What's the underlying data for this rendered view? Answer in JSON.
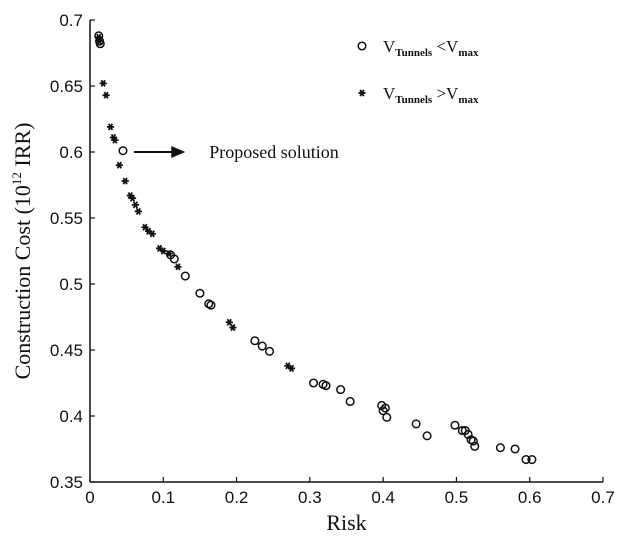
{
  "chart_data": {
    "type": "scatter",
    "xlabel": "Risk",
    "ylabel": "Construction Cost (10",
    "ylabel_sup": "12",
    "ylabel_tail": " IRR)",
    "xlim": [
      0,
      0.7
    ],
    "ylim": [
      0.35,
      0.7
    ],
    "xticks": [
      0,
      0.1,
      0.2,
      0.3,
      0.4,
      0.5,
      0.6,
      0.7
    ],
    "xtick_labels": [
      "0",
      "0.1",
      "0.2",
      "0.3",
      "0.4",
      "0.5",
      "0.6",
      "0.7"
    ],
    "yticks": [
      0.35,
      0.4,
      0.45,
      0.5,
      0.55,
      0.6,
      0.65,
      0.7
    ],
    "ytick_labels": [
      "0.35",
      "0.4",
      "0.45",
      "0.5",
      "0.55",
      "0.6",
      "0.65",
      "0.7"
    ],
    "grid": false,
    "legend_position": "top-right",
    "annotation": {
      "text": "Proposed solution",
      "arrow_from": [
        0.06,
        0.6
      ],
      "arrow_to": [
        0.13,
        0.6
      ]
    },
    "series": [
      {
        "name": "V_Tunnels < V_max",
        "legend": {
          "v": "V",
          "sub1": "Tunnels",
          "op": " <V",
          "sub2": "max"
        },
        "marker": "circle",
        "points": [
          [
            0.012,
            0.688
          ],
          [
            0.013,
            0.684
          ],
          [
            0.014,
            0.682
          ],
          [
            0.045,
            0.601
          ],
          [
            0.11,
            0.522
          ],
          [
            0.115,
            0.519
          ],
          [
            0.13,
            0.506
          ],
          [
            0.15,
            0.493
          ],
          [
            0.162,
            0.485
          ],
          [
            0.165,
            0.484
          ],
          [
            0.225,
            0.457
          ],
          [
            0.235,
            0.453
          ],
          [
            0.245,
            0.449
          ],
          [
            0.305,
            0.425
          ],
          [
            0.318,
            0.424
          ],
          [
            0.322,
            0.423
          ],
          [
            0.342,
            0.42
          ],
          [
            0.355,
            0.411
          ],
          [
            0.398,
            0.408
          ],
          [
            0.4,
            0.404
          ],
          [
            0.403,
            0.406
          ],
          [
            0.405,
            0.399
          ],
          [
            0.445,
            0.394
          ],
          [
            0.46,
            0.385
          ],
          [
            0.498,
            0.393
          ],
          [
            0.508,
            0.389
          ],
          [
            0.512,
            0.389
          ],
          [
            0.516,
            0.386
          ],
          [
            0.52,
            0.382
          ],
          [
            0.523,
            0.381
          ],
          [
            0.525,
            0.377
          ],
          [
            0.56,
            0.376
          ],
          [
            0.58,
            0.375
          ],
          [
            0.595,
            0.367
          ],
          [
            0.603,
            0.367
          ]
        ]
      },
      {
        "name": "V_Tunnels > V_max",
        "legend": {
          "v": "V",
          "sub1": "Tunnels",
          "op": " >V",
          "sub2": "max"
        },
        "marker": "asterisk",
        "points": [
          [
            0.012,
            0.687
          ],
          [
            0.013,
            0.684
          ],
          [
            0.018,
            0.652
          ],
          [
            0.022,
            0.643
          ],
          [
            0.028,
            0.619
          ],
          [
            0.032,
            0.611
          ],
          [
            0.034,
            0.609
          ],
          [
            0.04,
            0.59
          ],
          [
            0.048,
            0.578
          ],
          [
            0.055,
            0.567
          ],
          [
            0.058,
            0.565
          ],
          [
            0.062,
            0.56
          ],
          [
            0.066,
            0.555
          ],
          [
            0.075,
            0.543
          ],
          [
            0.08,
            0.54
          ],
          [
            0.085,
            0.538
          ],
          [
            0.095,
            0.527
          ],
          [
            0.1,
            0.525
          ],
          [
            0.108,
            0.523
          ],
          [
            0.12,
            0.513
          ],
          [
            0.19,
            0.471
          ],
          [
            0.195,
            0.467
          ],
          [
            0.27,
            0.438
          ],
          [
            0.275,
            0.436
          ]
        ]
      }
    ]
  }
}
